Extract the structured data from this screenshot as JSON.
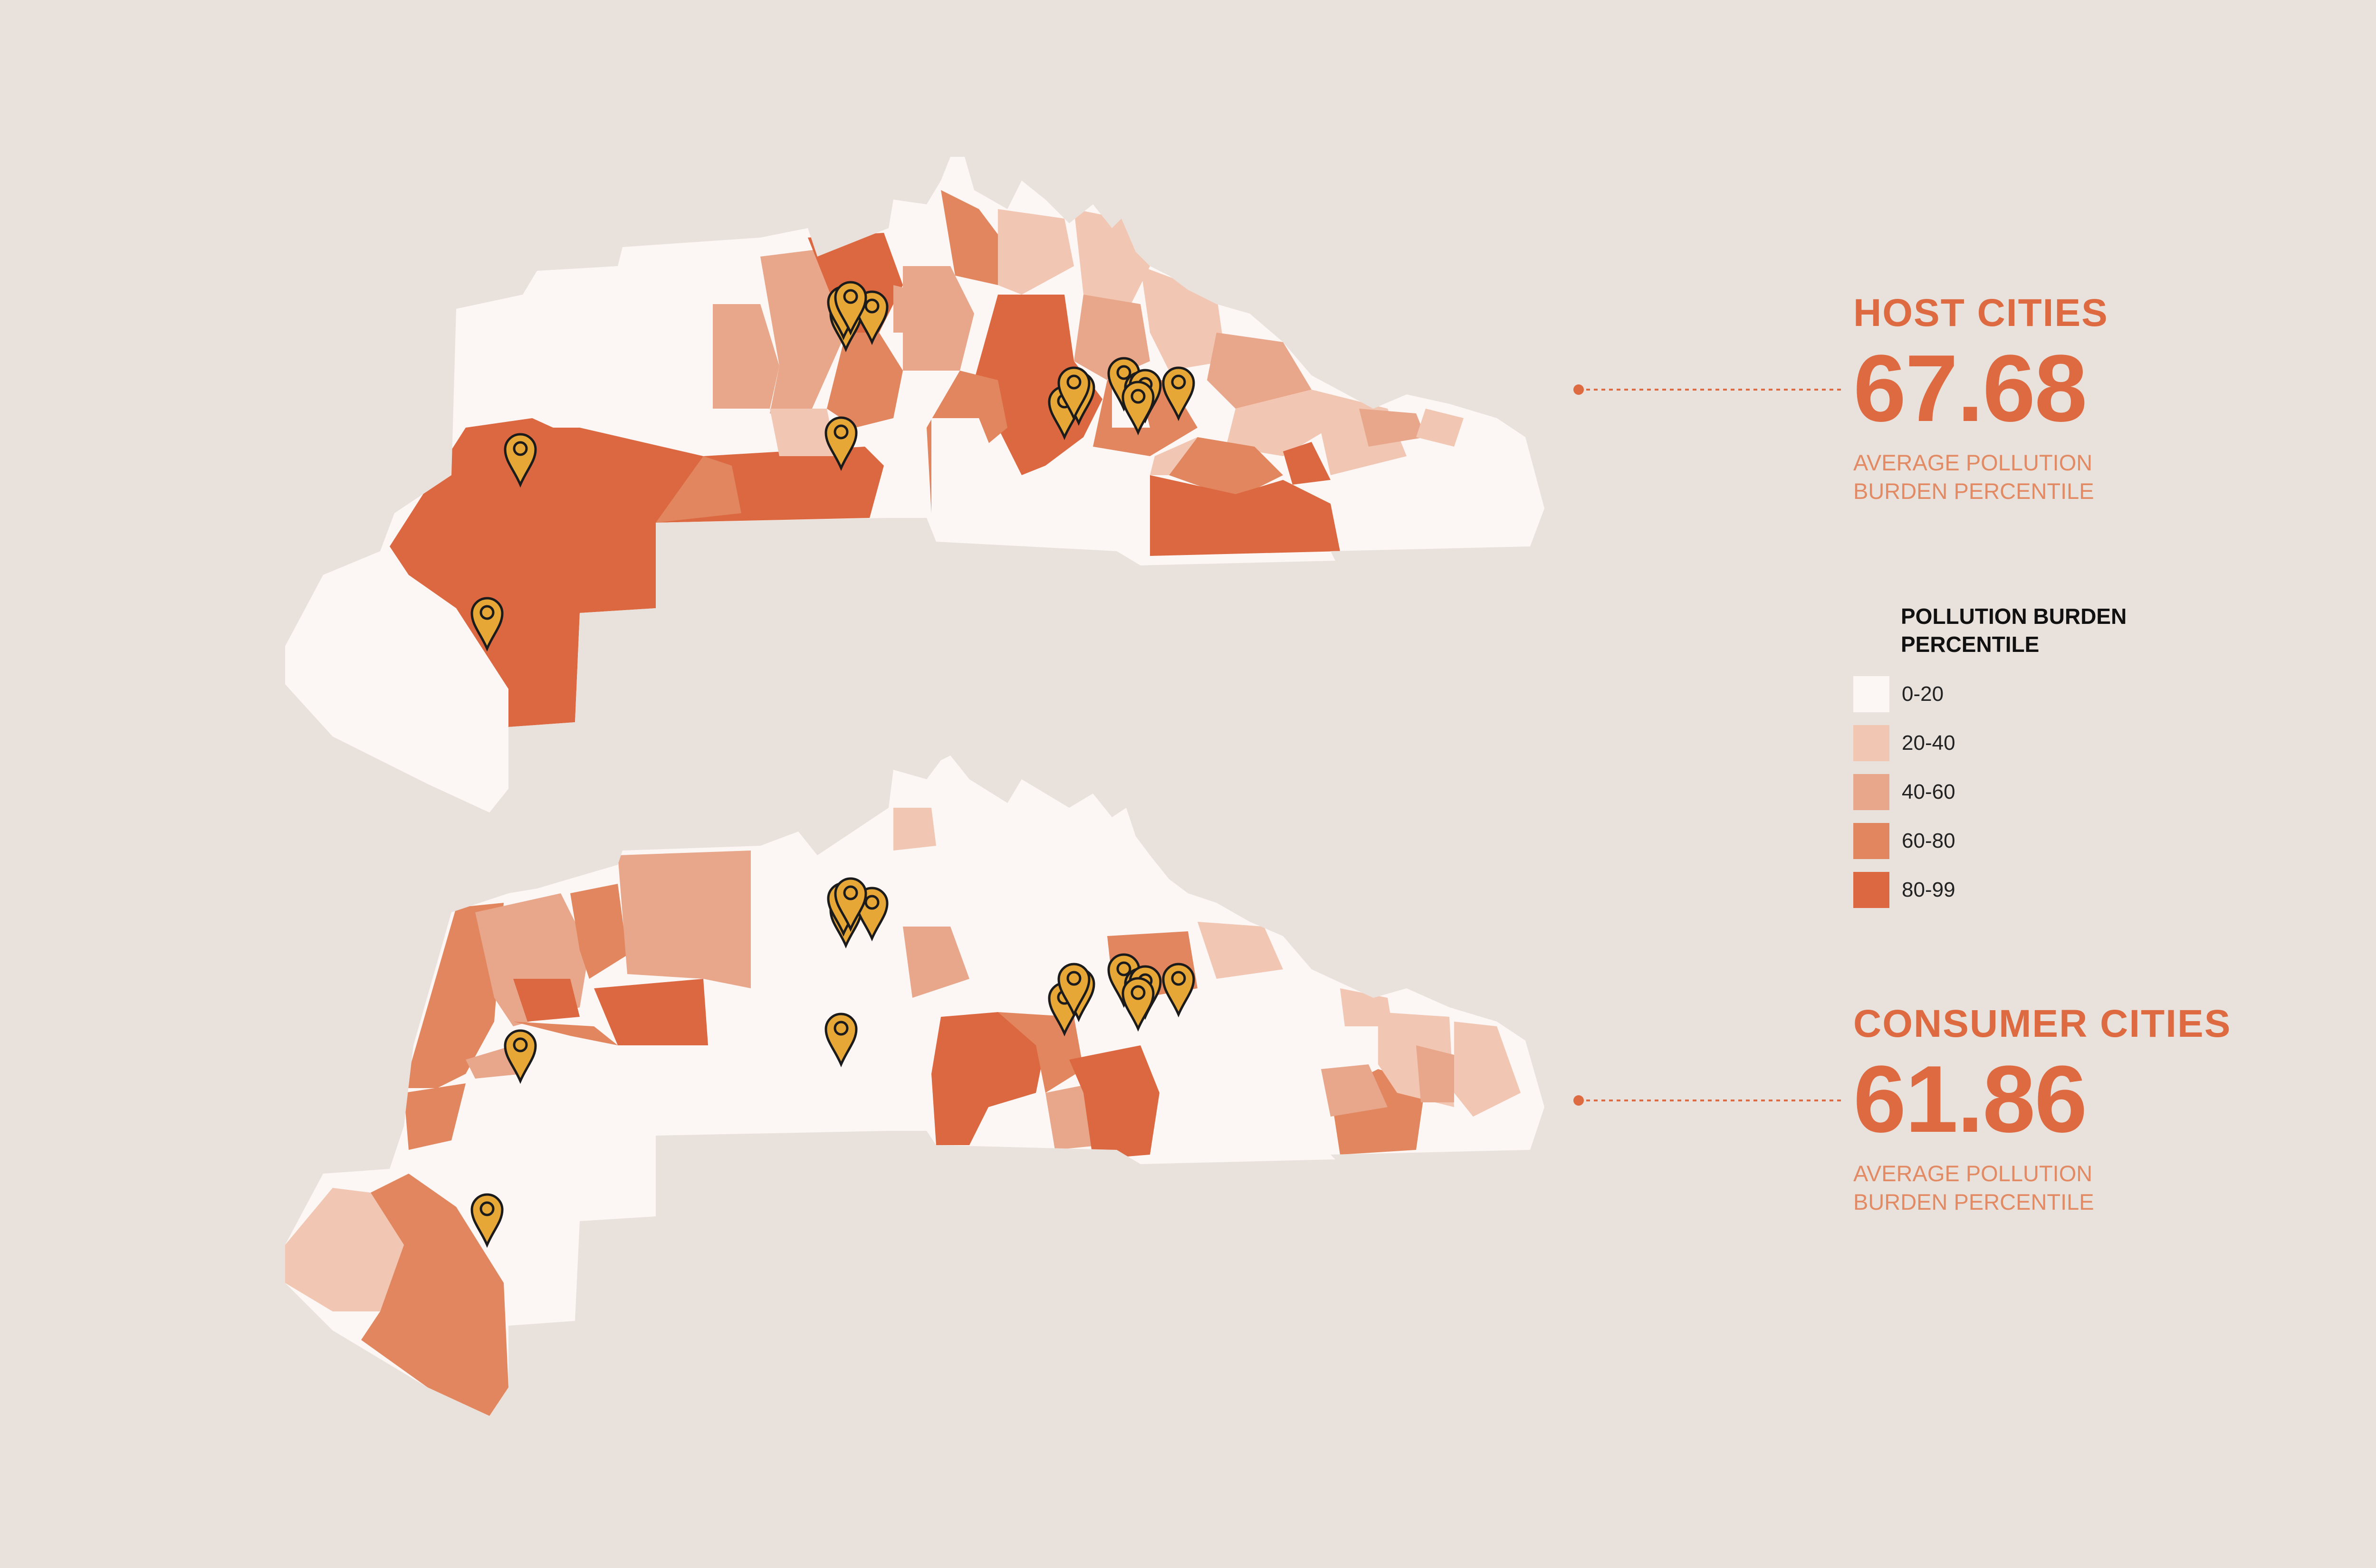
{
  "colors": {
    "background": "#e9e1db",
    "accent": "#dd6a40",
    "marker_fill": "#e6a737",
    "marker_stroke": "#1b1b1b",
    "leader_line": "#dd6a40"
  },
  "host": {
    "title": "HOST CITIES",
    "value": "67.68",
    "caption_line1": "AVERAGE POLLUTION",
    "caption_line2": "BURDEN PERCENTILE"
  },
  "consumer": {
    "title": "CONSUMER CITIES",
    "value": "61.86",
    "caption_line1": "AVERAGE POLLUTION",
    "caption_line2": "BURDEN PERCENTILE"
  },
  "legend": {
    "title": "POLLUTION BURDEN PERCENTILE",
    "items": [
      {
        "label": "0-20",
        "color": "#fcf7f4"
      },
      {
        "label": "20-40",
        "color": "#f1c6b3"
      },
      {
        "label": "40-60",
        "color": "#e8a68b"
      },
      {
        "label": "60-80",
        "color": "#e1865e"
      },
      {
        "label": "80-99",
        "color": "#db6840"
      }
    ]
  },
  "maps": [
    {
      "name": "host-cities-map",
      "marker_count": 15
    },
    {
      "name": "consumer-cities-map",
      "marker_count": 15
    }
  ]
}
